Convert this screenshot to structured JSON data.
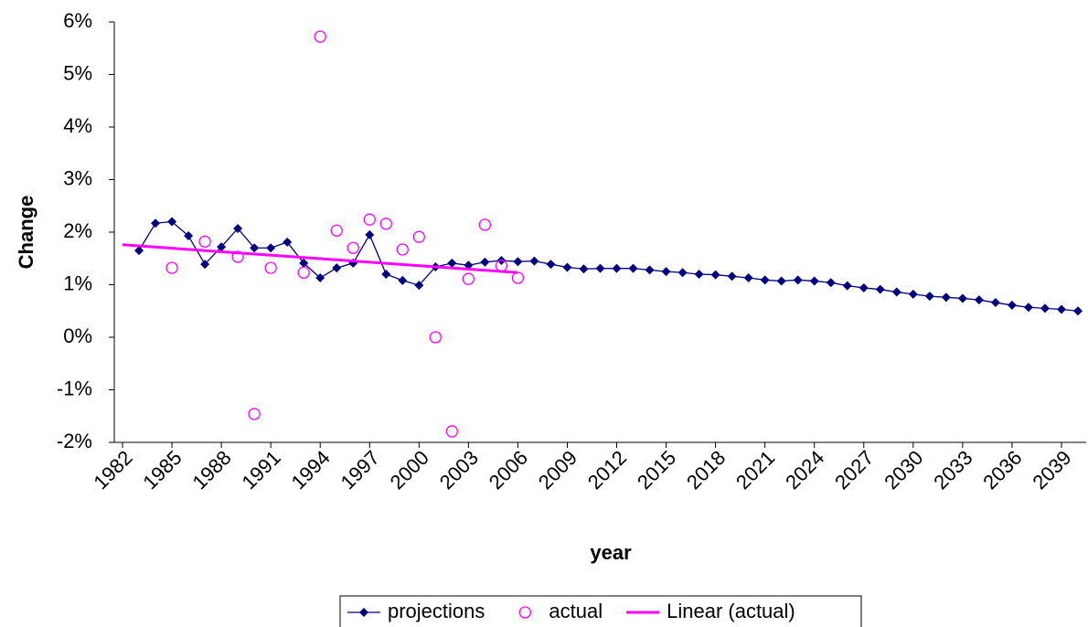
{
  "chart_data": {
    "type": "line",
    "y_label": "Change",
    "x_label": "year",
    "xlim": [
      1981.5,
      2040.5
    ],
    "xticks": [
      1982,
      1985,
      1988,
      1991,
      1994,
      1997,
      2000,
      2003,
      2006,
      2009,
      2012,
      2015,
      2018,
      2021,
      2024,
      2027,
      2030,
      2033,
      2036,
      2039
    ],
    "ylim": [
      -2,
      6
    ],
    "yticks": [
      {
        "value": -2,
        "label": "-2%"
      },
      {
        "value": -1,
        "label": "-1%"
      },
      {
        "value": 0,
        "label": "0%"
      },
      {
        "value": 1,
        "label": "1%"
      },
      {
        "value": 2,
        "label": "2%"
      },
      {
        "value": 3,
        "label": "3%"
      },
      {
        "value": 4,
        "label": "4%"
      },
      {
        "value": 5,
        "label": "5%"
      },
      {
        "value": 6,
        "label": "6%"
      }
    ],
    "grid": false,
    "legend": "bottom",
    "series": [
      {
        "name": "projections",
        "color": "#000080",
        "marker": "diamond",
        "line": true,
        "x": [
          1983,
          1984,
          1985,
          1986,
          1987,
          1988,
          1989,
          1990,
          1991,
          1992,
          1993,
          1994,
          1995,
          1996,
          1997,
          1998,
          1999,
          2000,
          2001,
          2002,
          2003,
          2004,
          2005,
          2006,
          2007,
          2008,
          2009,
          2010,
          2011,
          2012,
          2013,
          2014,
          2015,
          2016,
          2017,
          2018,
          2019,
          2020,
          2021,
          2022,
          2023,
          2024,
          2025,
          2026,
          2027,
          2028,
          2029,
          2030,
          2031,
          2032,
          2033,
          2034,
          2035,
          2036,
          2037,
          2038,
          2039,
          2040
        ],
        "values": [
          1.65,
          2.17,
          2.2,
          1.93,
          1.39,
          1.72,
          2.07,
          1.7,
          1.7,
          1.81,
          1.41,
          1.13,
          1.32,
          1.41,
          1.95,
          1.2,
          1.08,
          0.99,
          1.34,
          1.41,
          1.37,
          1.43,
          1.46,
          1.44,
          1.45,
          1.39,
          1.33,
          1.3,
          1.31,
          1.31,
          1.31,
          1.28,
          1.25,
          1.23,
          1.2,
          1.19,
          1.16,
          1.13,
          1.09,
          1.07,
          1.09,
          1.07,
          1.04,
          0.98,
          0.94,
          0.91,
          0.86,
          0.82,
          0.78,
          0.76,
          0.74,
          0.71,
          0.66,
          0.61,
          0.57,
          0.55,
          0.53,
          0.5
        ]
      },
      {
        "name": "actual",
        "color": "#ff00ff",
        "marker": "circle",
        "line": false,
        "x": [
          1985,
          1987,
          1989,
          1990,
          1991,
          1993,
          1994,
          1995,
          1996,
          1997,
          1998,
          1999,
          2000,
          2001,
          2002,
          2003,
          2004,
          2005,
          2006
        ],
        "values": [
          1.32,
          1.82,
          1.53,
          -1.46,
          1.32,
          1.23,
          5.72,
          2.03,
          1.7,
          2.24,
          2.16,
          1.67,
          1.91,
          0.0,
          -1.79,
          1.11,
          2.14,
          1.36,
          1.13
        ]
      },
      {
        "name": "Linear (actual)",
        "color": "#ff00ff",
        "marker": "none",
        "line": true,
        "x": [
          1982,
          2006
        ],
        "values": [
          1.76,
          1.23
        ]
      }
    ]
  }
}
